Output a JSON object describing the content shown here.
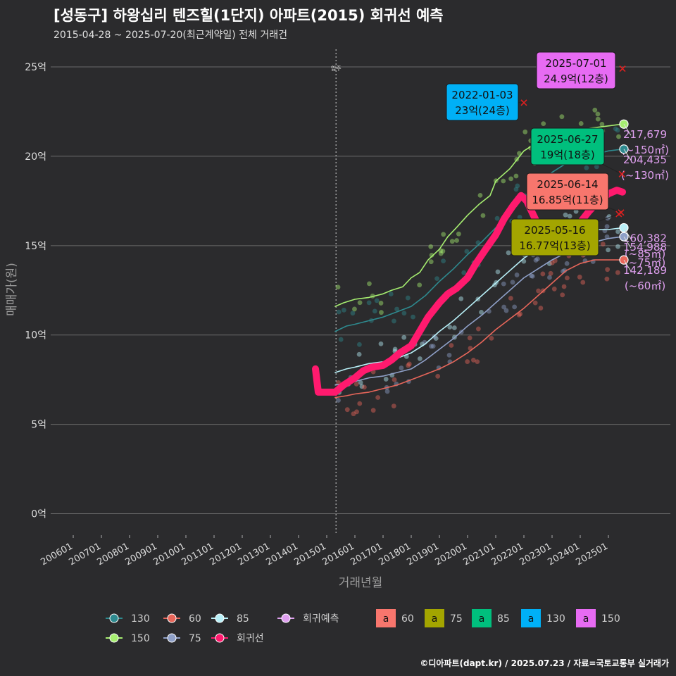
{
  "header": {
    "title": "[성동구] 하왕십리 텐즈힐(1단지) 아파트(2015) 회귀선 예측",
    "subtitle": "2015-04-28 ~ 2025-07-20(최근계약일) 전체 거래건"
  },
  "footer": {
    "credit": "©디아파트(dapt.kr) / 2025.07.23 / 자료=국토교통부 실거래가"
  },
  "colors": {
    "background": "#2b2b2d",
    "grid": "#6a6a6a",
    "s130": "#2e8a8f",
    "s60": "#e8665a",
    "s85": "#b8f0f8",
    "s150": "#a6ee70",
    "s75": "#8fa0c8",
    "regression": "#ff1a6e",
    "forecast": "#e0a0f0",
    "box60": "#f8766d",
    "box75": "#a3a500",
    "box85": "#00bf7d",
    "box130": "#00b0f6",
    "box150": "#e76bf3"
  },
  "chart_data": {
    "type": "line",
    "xlabel": "거래년월",
    "ylabel": "매매가(원)",
    "x_ticks": [
      "200601",
      "200701",
      "200801",
      "200901",
      "201001",
      "201101",
      "201201",
      "201301",
      "201401",
      "201501",
      "201601",
      "201701",
      "201801",
      "201901",
      "202001",
      "202101",
      "202201",
      "202301",
      "202401",
      "202501"
    ],
    "y_ticks": [
      {
        "value": 0,
        "label": "0억"
      },
      {
        "value": 5,
        "label": "5억"
      },
      {
        "value": 10,
        "label": "10억"
      },
      {
        "value": 15,
        "label": "15억"
      },
      {
        "value": 20,
        "label": "20억"
      },
      {
        "value": 25,
        "label": "25억"
      }
    ],
    "ylim": [
      -1.2,
      26.3
    ],
    "xlim": [
      2005.2,
      2027.2
    ],
    "vline": {
      "x": 2015.33,
      "label": "입주"
    },
    "series": [
      {
        "name": "150",
        "color_key": "s150",
        "x": [
          2015.3,
          2015.6,
          2016.0,
          2016.5,
          2017.0,
          2017.3,
          2017.7,
          2018.0,
          2018.3,
          2018.6,
          2019.0,
          2019.3,
          2019.6,
          2020.0,
          2020.4,
          2020.8,
          2021.0,
          2021.5,
          2022.0,
          2022.5,
          2023.0,
          2023.5,
          2024.0,
          2024.5,
          2025.0,
          2025.5
        ],
        "values": [
          11.6,
          11.8,
          12.0,
          12.1,
          12.3,
          12.5,
          12.7,
          13.2,
          13.5,
          14.2,
          14.8,
          15.5,
          16.0,
          16.7,
          17.3,
          17.8,
          18.6,
          19.3,
          20.3,
          20.8,
          21.1,
          21.4,
          21.5,
          21.6,
          21.7,
          21.8
        ]
      },
      {
        "name": "130",
        "color_key": "s130",
        "x": [
          2015.3,
          2015.7,
          2016.0,
          2016.5,
          2017.0,
          2017.5,
          2018.0,
          2018.5,
          2019.0,
          2019.5,
          2020.0,
          2020.5,
          2021.0,
          2021.5,
          2022.0,
          2022.5,
          2023.0,
          2023.5,
          2024.0,
          2024.5,
          2025.0,
          2025.5
        ],
        "values": [
          10.2,
          10.5,
          10.6,
          10.8,
          11.0,
          11.3,
          11.6,
          12.2,
          13.0,
          13.7,
          14.5,
          15.2,
          16.0,
          16.9,
          17.7,
          18.5,
          19.1,
          19.6,
          19.9,
          20.1,
          20.3,
          20.4
        ]
      },
      {
        "name": "85",
        "color_key": "s85",
        "x": [
          2015.3,
          2015.7,
          2016.0,
          2016.5,
          2017.0,
          2017.5,
          2018.0,
          2018.5,
          2019.0,
          2019.5,
          2020.0,
          2020.5,
          2021.0,
          2021.5,
          2022.0,
          2022.5,
          2023.0,
          2023.5,
          2024.0,
          2024.5,
          2025.0,
          2025.5
        ],
        "values": [
          7.9,
          8.1,
          8.2,
          8.4,
          8.5,
          8.7,
          9.0,
          9.5,
          10.2,
          10.8,
          11.5,
          12.2,
          12.9,
          13.6,
          14.3,
          14.8,
          15.2,
          15.6,
          15.8,
          15.9,
          15.9,
          16.0
        ]
      },
      {
        "name": "75",
        "color_key": "s75",
        "x": [
          2015.3,
          2015.7,
          2016.0,
          2016.5,
          2017.0,
          2017.5,
          2018.0,
          2018.5,
          2019.0,
          2019.5,
          2020.0,
          2020.5,
          2021.0,
          2021.5,
          2022.0,
          2022.5,
          2023.0,
          2023.5,
          2024.0,
          2024.5,
          2025.0,
          2025.5
        ],
        "values": [
          7.2,
          7.3,
          7.4,
          7.6,
          7.7,
          7.9,
          8.1,
          8.6,
          9.2,
          9.8,
          10.5,
          11.1,
          11.8,
          12.5,
          13.2,
          13.7,
          14.2,
          14.6,
          15.0,
          15.2,
          15.4,
          15.5
        ]
      },
      {
        "name": "60",
        "color_key": "s60",
        "x": [
          2015.3,
          2015.7,
          2016.0,
          2016.5,
          2017.0,
          2017.5,
          2018.0,
          2018.5,
          2019.0,
          2019.5,
          2020.0,
          2020.5,
          2021.0,
          2021.5,
          2022.0,
          2022.5,
          2023.0,
          2023.5,
          2024.0,
          2024.5,
          2025.0,
          2025.5
        ],
        "values": [
          6.5,
          6.6,
          6.7,
          6.8,
          7.0,
          7.2,
          7.5,
          7.8,
          8.1,
          8.5,
          9.0,
          9.6,
          10.3,
          10.9,
          11.5,
          12.2,
          12.9,
          13.6,
          14.0,
          14.2,
          14.2,
          14.2
        ]
      },
      {
        "name": "회귀선",
        "color_key": "regression",
        "x": [
          2014.6,
          2014.7,
          2015.0,
          2015.3,
          2015.6,
          2016.0,
          2016.3,
          2016.6,
          2017.0,
          2017.3,
          2017.6,
          2018.0,
          2018.3,
          2018.6,
          2019.0,
          2019.3,
          2019.6,
          2020.0,
          2020.3,
          2020.6,
          2021.0,
          2021.3,
          2021.6,
          2021.9,
          2022.1,
          2022.4,
          2022.7,
          2023.0,
          2023.3,
          2023.6,
          2024.0,
          2024.3,
          2024.6,
          2025.0,
          2025.3,
          2025.5
        ],
        "values": [
          8.1,
          6.8,
          6.8,
          6.8,
          7.2,
          7.6,
          8.0,
          8.2,
          8.3,
          8.6,
          9.0,
          9.4,
          10.2,
          11.0,
          11.8,
          12.3,
          12.6,
          13.2,
          14.0,
          14.7,
          15.6,
          16.5,
          17.2,
          17.8,
          17.5,
          16.5,
          15.5,
          15.0,
          15.1,
          15.5,
          16.3,
          16.9,
          17.4,
          17.9,
          18.1,
          18.0
        ]
      }
    ],
    "end_labels": [
      {
        "series": "150",
        "price": "217,679",
        "area": "(~150㎡)",
        "value": 21.8
      },
      {
        "series": "130",
        "price": "204,435",
        "area": "(~130㎡)",
        "value": 20.4
      },
      {
        "series": "85",
        "price": "160,382",
        "area": "(~85㎡)",
        "value": 16.0
      },
      {
        "series": "75",
        "price": "154,988",
        "area": "(~75㎡)",
        "value": 15.5
      },
      {
        "series": "60",
        "price": "142,189",
        "area": "(~60㎡)",
        "value": 14.2
      }
    ],
    "callouts": [
      {
        "date": "2025-07-01",
        "text": "24.9억(12층)",
        "color_key": "box150",
        "x": 2025.5,
        "value": 24.9
      },
      {
        "date": "2022-01-03",
        "text": "23억(24층)",
        "color_key": "box130",
        "x": 2022.0,
        "value": 23.0
      },
      {
        "date": "2025-06-27",
        "text": "19억(18층)",
        "color_key": "box85",
        "x": 2025.48,
        "value": 19.0
      },
      {
        "date": "2025-06-14",
        "text": "16.85억(11층)",
        "color_key": "box60",
        "x": 2025.45,
        "value": 16.85
      },
      {
        "date": "2025-05-16",
        "text": "16.77억(13층)",
        "color_key": "box75",
        "x": 2025.37,
        "value": 16.77
      }
    ],
    "legend": {
      "placement": "bottom",
      "lines": [
        {
          "label": "130",
          "color_key": "s130"
        },
        {
          "label": "60",
          "color_key": "s60"
        },
        {
          "label": "85",
          "color_key": "s85"
        },
        {
          "label": "회귀예측",
          "color_key": "forecast"
        },
        {
          "label": "150",
          "color_key": "s150"
        },
        {
          "label": "75",
          "color_key": "s75"
        },
        {
          "label": "회귀선",
          "color_key": "regression"
        }
      ],
      "boxes": [
        {
          "label": "60",
          "color_key": "box60"
        },
        {
          "label": "75",
          "color_key": "box75"
        },
        {
          "label": "85",
          "color_key": "box85"
        },
        {
          "label": "130",
          "color_key": "box130"
        },
        {
          "label": "150",
          "color_key": "box150"
        }
      ],
      "box_glyph": "a"
    }
  }
}
